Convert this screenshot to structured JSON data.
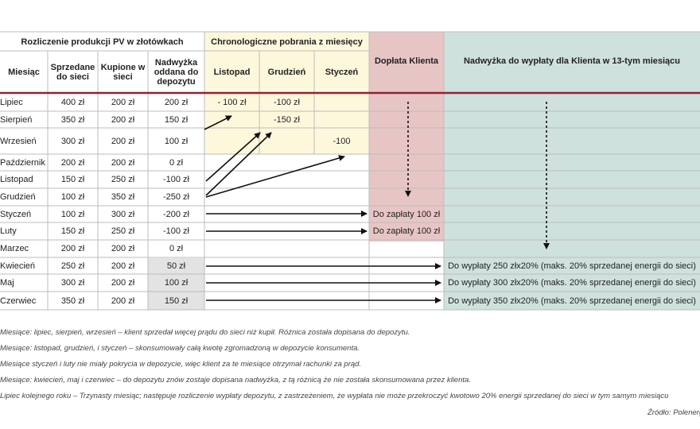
{
  "table": {
    "group_headers": {
      "production": "Rozliczenie produkcji PV w złotówkach",
      "chrono": "Chronologiczne pobrania z miesięcy",
      "doplata": "Dopłata Klienta",
      "nadwyzka": "Nadwyżka do wypłaty dla Klienta w 13-tym miesiącu"
    },
    "col_headers": {
      "month": "Miesiąc",
      "sold": "Sprzedane\ndo sieci",
      "bought": "Kupione w\nsieci",
      "surplus": "Nadwyżka\noddana do\ndepozytu",
      "listopad": "Listopad",
      "grudzien": "Grudzień",
      "styczen": "Styczeń"
    },
    "rows": [
      {
        "month": "Lipiec",
        "sold": "400 zł",
        "bought": "200 zł",
        "surplus": "200 zł",
        "listopad": "- 100 zł",
        "grudzien": "-100 zł",
        "styczen": "",
        "doplata": "",
        "payout": ""
      },
      {
        "month": "Sierpień",
        "sold": "350 zł",
        "bought": "200 zł",
        "surplus": "150 zł",
        "listopad": "",
        "grudzien": "-150 zł",
        "styczen": "",
        "doplata": "",
        "payout": ""
      },
      {
        "month": "Wrzesień",
        "sold": "300 zł",
        "bought": "200 zł",
        "surplus": "100 zł",
        "listopad": "",
        "grudzien": "",
        "styczen": "-100",
        "doplata": "",
        "payout": ""
      },
      {
        "month": "Październik",
        "sold": "200 zł",
        "bought": "200 zł",
        "surplus": "0 zł",
        "listopad": "",
        "grudzien": "",
        "styczen": "",
        "doplata": "",
        "payout": ""
      },
      {
        "month": "Listopad",
        "sold": "150 zł",
        "bought": "250 zł",
        "surplus": "-100 zł",
        "listopad": "",
        "grudzien": "",
        "styczen": "",
        "doplata": "",
        "payout": ""
      },
      {
        "month": "Grudzień",
        "sold": "100 zł",
        "bought": "350 zł",
        "surplus": "-250 zł",
        "listopad": "",
        "grudzien": "",
        "styczen": "",
        "doplata": "",
        "payout": ""
      },
      {
        "month": "Styczeń",
        "sold": "100 zł",
        "bought": "300 zł",
        "surplus": "-200 zł",
        "listopad": "",
        "grudzien": "",
        "styczen": "",
        "doplata": "Do zapłaty 100 zł",
        "payout": ""
      },
      {
        "month": "Luty",
        "sold": "150 zł",
        "bought": "250 zł",
        "surplus": "-100 zł",
        "listopad": "",
        "grudzien": "",
        "styczen": "",
        "doplata": "Do zapłaty 100 zł",
        "payout": ""
      },
      {
        "month": "Marzec",
        "sold": "200 zł",
        "bought": "200 zł",
        "surplus": "0 zł",
        "listopad": "",
        "grudzien": "",
        "styczen": "",
        "doplata": "",
        "payout": ""
      },
      {
        "month": "Kwiecień",
        "sold": "250 zł",
        "bought": "200 zł",
        "surplus": "50 zł",
        "listopad": "",
        "grudzien": "",
        "styczen": "",
        "doplata": "",
        "payout": "Do wypłaty 250 złx20%  (maks. 20% sprzedanej energii do sieci)"
      },
      {
        "month": "Maj",
        "sold": "300 zł",
        "bought": "200 zł",
        "surplus": "100 zł",
        "listopad": "",
        "grudzien": "",
        "styczen": "",
        "doplata": "",
        "payout": "Do wypłaty 300 złx20%  (maks. 20% sprzedanej energii do sieci)"
      },
      {
        "month": "Czerwiec",
        "sold": "350 zł",
        "bought": "200 zł",
        "surplus": "150 zł",
        "listopad": "",
        "grudzien": "",
        "styczen": "",
        "doplata": "",
        "payout": "Do wypłaty 350 złx20%  (maks. 20% sprzedanej energii do sieci)"
      }
    ]
  },
  "notes": [
    "Miesiące: lipiec, sierpień, wrzesień – klient sprzedał więcej prądu do sieci niż kupił. Różnica została dopisana do depozytu.",
    "Miesiące: listopad, grudzień, i styczeń – skonsumowały całą kwotę zgromadzoną w depozycie konsumenta.",
    "Miesiące styczeń i luty nie miały pokrycia w depozycie, więc klient za te miesiące otrzymał rachunki za prąd.",
    "Miesiące: kwiecień, maj i czerwiec – do depozytu znów zostaje dopisana nadwyżka, z tą różnicą że nie została skonsumowana przez klienta.",
    "Lipiec kolejnego roku – Trzynasty miesiąc; następuje rozliczenie wypłaty depozytu, z zastrzeżeniem, że wypłata nie może przekroczyć kwotowo 20% energii sprzedanej do sieci w tym samym miesiącu"
  ],
  "source": "Źródło: Polenergia",
  "colors": {
    "chrono_fill": "#fdf8dc",
    "doplata_fill": "#e8c5c5",
    "nadwyzka_fill": "#cfe1dd",
    "surplus_fill": "#e3e3e3",
    "accent_line": "#8e2334"
  }
}
